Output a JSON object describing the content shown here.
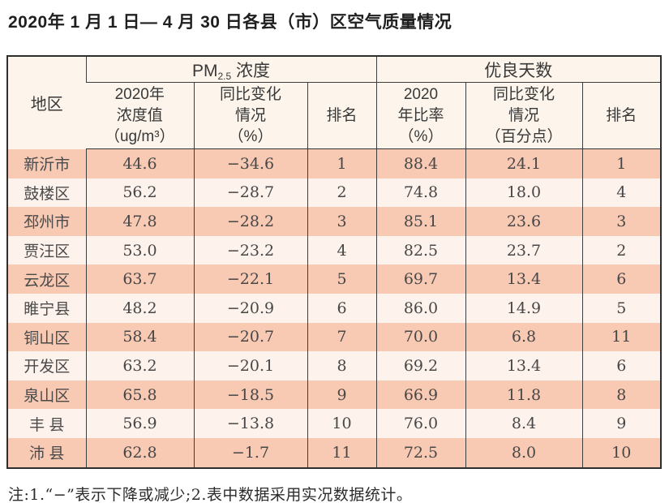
{
  "page": {
    "title": "2020年 1 月 1 日— 4 月 30 日各县（市）区空气质量情况",
    "note": "注:1.“−”表示下降或减少;2.表中数据采用实况数据统计。"
  },
  "table": {
    "header": {
      "region": "地区",
      "pm_group": {
        "pre": "PM",
        "sub": "2.5",
        "post": " 浓度"
      },
      "good_group": "优良天数",
      "pm_value": "2020年\n浓度值\n（ug/m³）",
      "pm_change": "同比变化\n情况\n（%）",
      "pm_rank": "排名",
      "good_rate": "2020\n年比率\n（%）",
      "good_change": "同比变化\n情况\n（百分点）",
      "good_rank": "排名"
    },
    "rows": [
      {
        "region": "新沂市",
        "pm_value": "44.6",
        "pm_change": "−34.6",
        "pm_rank": "1",
        "good_rate": "88.4",
        "good_change": "24.1",
        "good_rank": "1"
      },
      {
        "region": "鼓楼区",
        "pm_value": "56.2",
        "pm_change": "−28.7",
        "pm_rank": "2",
        "good_rate": "74.8",
        "good_change": "18.0",
        "good_rank": "4"
      },
      {
        "region": "邳州市",
        "pm_value": "47.8",
        "pm_change": "−28.2",
        "pm_rank": "3",
        "good_rate": "85.1",
        "good_change": "23.6",
        "good_rank": "3"
      },
      {
        "region": "贾汪区",
        "pm_value": "53.0",
        "pm_change": "−23.2",
        "pm_rank": "4",
        "good_rate": "82.5",
        "good_change": "23.7",
        "good_rank": "2"
      },
      {
        "region": "云龙区",
        "pm_value": "63.7",
        "pm_change": "−22.1",
        "pm_rank": "5",
        "good_rate": "69.7",
        "good_change": "13.4",
        "good_rank": "6"
      },
      {
        "region": "睢宁县",
        "pm_value": "48.2",
        "pm_change": "−20.9",
        "pm_rank": "6",
        "good_rate": "86.0",
        "good_change": "14.9",
        "good_rank": "5"
      },
      {
        "region": "铜山区",
        "pm_value": "58.4",
        "pm_change": "−20.7",
        "pm_rank": "7",
        "good_rate": "70.0",
        "good_change": "6.8",
        "good_rank": "11"
      },
      {
        "region": "开发区",
        "pm_value": "63.2",
        "pm_change": "−20.1",
        "pm_rank": "8",
        "good_rate": "69.2",
        "good_change": "13.4",
        "good_rank": "6"
      },
      {
        "region": "泉山区",
        "pm_value": "65.8",
        "pm_change": "−18.5",
        "pm_rank": "9",
        "good_rate": "66.9",
        "good_change": "11.8",
        "good_rank": "8"
      },
      {
        "region": "丰 县",
        "pm_value": "56.9",
        "pm_change": "−13.8",
        "pm_rank": "10",
        "good_rate": "76.0",
        "good_change": "8.4",
        "good_rank": "9"
      },
      {
        "region": "沛 县",
        "pm_value": "62.8",
        "pm_change": "−1.7",
        "pm_rank": "11",
        "good_rate": "72.5",
        "good_change": "8.0",
        "good_rank": "10"
      }
    ],
    "colors": {
      "row_odd_bg": "#f8c9b3",
      "row_even_bg": "#fdf2ec",
      "header_bg": "#fdf5eb",
      "border": "#3d3d3d",
      "outer_border": "#2e2e2e",
      "text": "#474747"
    }
  }
}
